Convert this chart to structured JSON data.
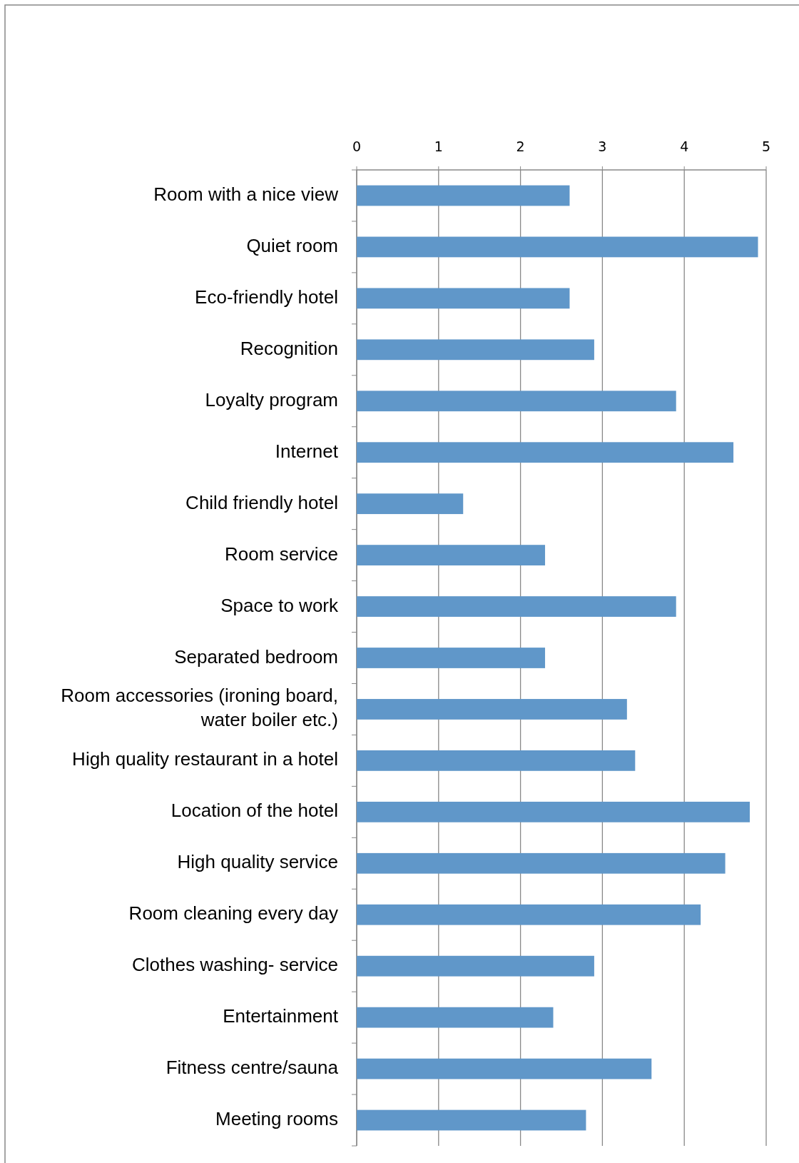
{
  "chart_data": {
    "type": "bar",
    "orientation": "horizontal",
    "categories": [
      "Room with a nice view",
      "Quiet room",
      "Eco-friendly hotel",
      "Recognition",
      "Loyalty program",
      "Internet",
      "Child friendly hotel",
      "Room service",
      "Space to work",
      "Separated bedroom",
      "Room accessories (ironing board, water boiler etc.)",
      "High quality restaurant in a hotel",
      "Location of the hotel",
      "High quality service",
      "Room cleaning every day",
      "Clothes washing- service",
      "Entertainment",
      "Fitness centre/sauna",
      "Meeting rooms"
    ],
    "values": [
      2.6,
      4.9,
      2.6,
      2.9,
      3.9,
      4.6,
      1.3,
      2.3,
      3.9,
      2.3,
      3.3,
      3.4,
      4.8,
      4.5,
      4.2,
      2.9,
      2.4,
      3.6,
      2.8
    ],
    "color": "#6097c9",
    "xlim": [
      0,
      5
    ],
    "xticks": [
      0,
      1,
      2,
      3,
      4,
      5
    ],
    "grid": "x"
  }
}
